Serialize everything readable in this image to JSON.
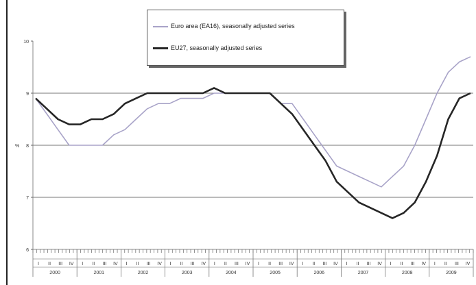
{
  "chart_data": {
    "type": "line",
    "ylabel": "%",
    "y_ticks": [
      "10",
      "9",
      "8",
      "7",
      "6"
    ],
    "ylim": [
      6,
      10
    ],
    "x_major_labels": [
      "2000",
      "2001",
      "2002",
      "2003",
      "2004",
      "2005",
      "2006",
      "2007",
      "2008",
      "2009"
    ],
    "x_minor_labels": [
      "I",
      "II",
      "III",
      "IV"
    ],
    "legend": [
      "Euro area (EA16), seasonally adjusted series",
      "EU27, seasonally adjusted series"
    ],
    "legend_position": "top-center",
    "grid": "horizontal",
    "x": [
      "2000-01",
      "2000-04",
      "2000-07",
      "2000-10",
      "2001-01",
      "2001-04",
      "2001-07",
      "2001-10",
      "2002-01",
      "2002-04",
      "2002-07",
      "2002-10",
      "2003-01",
      "2003-04",
      "2003-07",
      "2003-10",
      "2004-01",
      "2004-04",
      "2004-07",
      "2004-10",
      "2005-01",
      "2005-04",
      "2005-07",
      "2005-10",
      "2006-01",
      "2006-04",
      "2006-07",
      "2006-10",
      "2007-01",
      "2007-04",
      "2007-07",
      "2007-10",
      "2008-01",
      "2008-04",
      "2008-07",
      "2008-10",
      "2009-01",
      "2009-04",
      "2009-07",
      "2009-10"
    ],
    "series": [
      {
        "name": "Euro area (EA16), seasonally adjusted series",
        "color": "#a8a3c8",
        "values": [
          8.9,
          8.6,
          8.3,
          8.0,
          8.0,
          8.0,
          8.0,
          8.2,
          8.3,
          8.5,
          8.7,
          8.8,
          8.8,
          8.9,
          8.9,
          8.9,
          9.0,
          9.0,
          9.0,
          9.0,
          9.0,
          9.0,
          8.8,
          8.8,
          8.5,
          8.2,
          7.9,
          7.6,
          7.5,
          7.4,
          7.3,
          7.2,
          7.4,
          7.6,
          8.0,
          8.5,
          9.0,
          9.4,
          9.6,
          9.7
        ]
      },
      {
        "name": "EU27, seasonally adjusted series",
        "color": "#262626",
        "values": [
          8.9,
          8.7,
          8.5,
          8.4,
          8.4,
          8.5,
          8.5,
          8.6,
          8.8,
          8.9,
          9.0,
          9.0,
          9.0,
          9.0,
          9.0,
          9.0,
          9.1,
          9.0,
          9.0,
          9.0,
          9.0,
          9.0,
          8.8,
          8.6,
          8.3,
          8.0,
          7.7,
          7.3,
          7.1,
          6.9,
          6.8,
          6.7,
          6.6,
          6.7,
          6.9,
          7.3,
          7.8,
          8.5,
          8.9,
          9.0
        ]
      }
    ]
  }
}
